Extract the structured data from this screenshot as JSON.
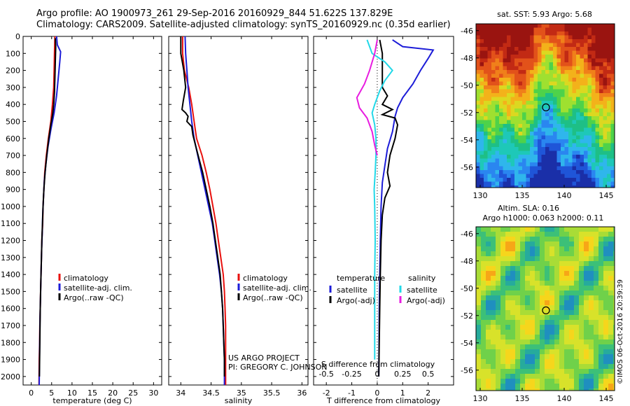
{
  "header": {
    "title_line1": "Argo profile: AO 1900973_261 29-Sep-2016 20160929_844 51.622S 137.829E",
    "title_line2": "Climatology: CARS2009. Satellite-adjusted climatology: synTS_20160929.nc (0.35d earlier)"
  },
  "colors": {
    "climatology": "#e8110e",
    "satellite": "#1c1cd8",
    "argo": "#000000",
    "salinity_satellite": "#22d8e8",
    "salinity_argo": "#e81ce0"
  },
  "credits": {
    "project": "US ARGO PROJECT",
    "pi": "PI: GREGORY C. JOHNSON",
    "watermark": "©IMOS 06-Oct-2016 20:39:39"
  },
  "chart_data": [
    {
      "type": "line",
      "name": "temperature-profile",
      "xlabel": "temperature (deg C)",
      "ylabel": "",
      "xlim": [
        -2,
        32
      ],
      "ylim": [
        2050,
        0
      ],
      "xticks": [
        0,
        5,
        10,
        15,
        20,
        25,
        30
      ],
      "yticks": [
        0,
        100,
        200,
        300,
        400,
        500,
        600,
        700,
        800,
        900,
        1000,
        1100,
        1200,
        1300,
        1400,
        1500,
        1600,
        1700,
        1800,
        1900,
        2000
      ],
      "legend": [
        "climatology",
        "satellite-adj. clim.",
        "Argo(..raw -QC)"
      ],
      "legend_placement": "lower-center",
      "series": [
        {
          "name": "climatology",
          "color": "#e8110e",
          "points": [
            [
              5.8,
              0
            ],
            [
              5.7,
              100
            ],
            [
              5.6,
              200
            ],
            [
              5.5,
              300
            ],
            [
              5.2,
              400
            ],
            [
              4.8,
              500
            ],
            [
              4.2,
              600
            ],
            [
              3.7,
              700
            ],
            [
              3.3,
              800
            ],
            [
              3.1,
              900
            ],
            [
              2.9,
              1000
            ],
            [
              2.8,
              1100
            ],
            [
              2.6,
              1200
            ],
            [
              2.5,
              1300
            ],
            [
              2.4,
              1400
            ],
            [
              2.3,
              1500
            ],
            [
              2.2,
              1600
            ],
            [
              2.1,
              1700
            ],
            [
              2.05,
              1800
            ],
            [
              1.95,
              1900
            ],
            [
              1.9,
              2050
            ]
          ]
        },
        {
          "name": "satellite-adj. clim.",
          "color": "#1c1cd8",
          "points": [
            [
              6.2,
              0
            ],
            [
              6.4,
              50
            ],
            [
              7.2,
              90
            ],
            [
              7.0,
              150
            ],
            [
              6.6,
              250
            ],
            [
              6.2,
              350
            ],
            [
              5.6,
              450
            ],
            [
              4.8,
              550
            ],
            [
              4.1,
              650
            ],
            [
              3.6,
              750
            ],
            [
              3.2,
              850
            ],
            [
              3.0,
              950
            ],
            [
              2.8,
              1050
            ],
            [
              2.7,
              1150
            ],
            [
              2.55,
              1250
            ],
            [
              2.45,
              1350
            ],
            [
              2.35,
              1450
            ],
            [
              2.25,
              1550
            ],
            [
              2.15,
              1650
            ],
            [
              2.1,
              1750
            ],
            [
              2.05,
              1850
            ],
            [
              2.0,
              1950
            ],
            [
              1.95,
              2050
            ]
          ]
        },
        {
          "name": "Argo(..raw -QC)",
          "color": "#000000",
          "points": [
            [
              5.9,
              10
            ],
            [
              6.0,
              60
            ],
            [
              5.9,
              150
            ],
            [
              5.8,
              250
            ],
            [
              5.7,
              330
            ],
            [
              5.5,
              400
            ],
            [
              5.3,
              450
            ],
            [
              4.8,
              520
            ],
            [
              4.3,
              600
            ],
            [
              3.8,
              700
            ],
            [
              3.4,
              800
            ],
            [
              3.1,
              900
            ],
            [
              2.9,
              1000
            ],
            [
              2.75,
              1100
            ],
            [
              2.6,
              1200
            ],
            [
              2.5,
              1300
            ],
            [
              2.4,
              1400
            ],
            [
              2.3,
              1500
            ],
            [
              2.2,
              1600
            ],
            [
              2.15,
              1700
            ],
            [
              2.1,
              1800
            ],
            [
              2.05,
              1900
            ],
            [
              2.0,
              2000
            ]
          ]
        }
      ]
    },
    {
      "type": "line",
      "name": "salinity-profile",
      "xlabel": "salinity",
      "ylabel": "",
      "xlim": [
        33.8,
        36.1
      ],
      "ylim": [
        2050,
        0
      ],
      "xticks": [
        34,
        34.5,
        35,
        35.5,
        36
      ],
      "legend": [
        "climatology",
        "satellite-adj. clim.",
        "Argo(..raw -QC)"
      ],
      "legend_placement": "lower-right",
      "series": [
        {
          "name": "climatology",
          "color": "#e8110e",
          "points": [
            [
              34.03,
              0
            ],
            [
              34.03,
              100
            ],
            [
              34.06,
              200
            ],
            [
              34.13,
              300
            ],
            [
              34.18,
              400
            ],
            [
              34.22,
              500
            ],
            [
              34.26,
              600
            ],
            [
              34.35,
              700
            ],
            [
              34.42,
              800
            ],
            [
              34.48,
              900
            ],
            [
              34.53,
              1000
            ],
            [
              34.58,
              1100
            ],
            [
              34.62,
              1200
            ],
            [
              34.66,
              1300
            ],
            [
              34.7,
              1400
            ],
            [
              34.72,
              1500
            ],
            [
              34.73,
              1600
            ],
            [
              34.74,
              1700
            ],
            [
              34.74,
              1800
            ],
            [
              34.74,
              1900
            ],
            [
              34.74,
              2050
            ]
          ]
        },
        {
          "name": "satellite-adj. clim.",
          "color": "#1c1cd8",
          "points": [
            [
              34.07,
              0
            ],
            [
              34.08,
              100
            ],
            [
              34.1,
              200
            ],
            [
              34.12,
              300
            ],
            [
              34.15,
              400
            ],
            [
              34.18,
              500
            ],
            [
              34.22,
              600
            ],
            [
              34.28,
              700
            ],
            [
              34.34,
              800
            ],
            [
              34.4,
              900
            ],
            [
              34.46,
              1000
            ],
            [
              34.52,
              1100
            ],
            [
              34.56,
              1200
            ],
            [
              34.6,
              1300
            ],
            [
              34.64,
              1400
            ],
            [
              34.67,
              1500
            ],
            [
              34.69,
              1600
            ],
            [
              34.7,
              1700
            ],
            [
              34.71,
              1800
            ],
            [
              34.72,
              1900
            ],
            [
              34.72,
              2050
            ]
          ]
        },
        {
          "name": "Argo(..raw -QC)",
          "color": "#000000",
          "points": [
            [
              34.0,
              0
            ],
            [
              34.0,
              100
            ],
            [
              34.05,
              200
            ],
            [
              34.08,
              300
            ],
            [
              34.04,
              380
            ],
            [
              34.02,
              430
            ],
            [
              34.08,
              450
            ],
            [
              34.12,
              470
            ],
            [
              34.1,
              500
            ],
            [
              34.18,
              530
            ],
            [
              34.2,
              580
            ],
            [
              34.25,
              650
            ],
            [
              34.3,
              720
            ],
            [
              34.36,
              800
            ],
            [
              34.42,
              900
            ],
            [
              34.48,
              1000
            ],
            [
              34.53,
              1100
            ],
            [
              34.57,
              1200
            ],
            [
              34.61,
              1300
            ],
            [
              34.65,
              1400
            ],
            [
              34.67,
              1500
            ],
            [
              34.69,
              1600
            ],
            [
              34.7,
              1700
            ],
            [
              34.71,
              1800
            ],
            [
              34.72,
              1900
            ],
            [
              34.72,
              2000
            ]
          ]
        }
      ]
    },
    {
      "type": "line",
      "name": "difference-profile",
      "xlabel": "T difference from climatology",
      "x2label": "S difference from climatology",
      "xlim": [
        -2.5,
        3.0
      ],
      "ylim": [
        2050,
        0
      ],
      "xticks": [
        -2,
        -1,
        0,
        1,
        2
      ],
      "x2ticks": [
        "-0.5",
        "-0.25",
        "0",
        "0.25",
        "0.5"
      ],
      "x2tick_positions": [
        -2,
        -1,
        0,
        1,
        2
      ],
      "legend_groups": [
        {
          "title": "temperature",
          "items": [
            "satellite",
            "Argo(-adj)"
          ]
        },
        {
          "title": "salinity",
          "items": [
            "satellite",
            "Argo(-adj)"
          ]
        }
      ],
      "series": [
        {
          "name": "temperature satellite",
          "color": "#1c1cd8",
          "points": [
            [
              0.6,
              20
            ],
            [
              1.0,
              60
            ],
            [
              2.2,
              80
            ],
            [
              2.0,
              130
            ],
            [
              1.7,
              200
            ],
            [
              1.4,
              280
            ],
            [
              1.0,
              360
            ],
            [
              0.8,
              420
            ],
            [
              0.7,
              470
            ],
            [
              0.6,
              560
            ],
            [
              0.4,
              660
            ],
            [
              0.3,
              760
            ],
            [
              0.2,
              860
            ],
            [
              0.15,
              1000
            ],
            [
              0.12,
              1200
            ],
            [
              0.1,
              1400
            ],
            [
              0.08,
              1600
            ],
            [
              0.07,
              1800
            ],
            [
              0.06,
              2000
            ]
          ]
        },
        {
          "name": "temperature Argo(-adj)",
          "color": "#000000",
          "points": [
            [
              0.1,
              20
            ],
            [
              0.2,
              100
            ],
            [
              0.2,
              200
            ],
            [
              0.2,
              300
            ],
            [
              0.4,
              350
            ],
            [
              0.2,
              400
            ],
            [
              0.6,
              430
            ],
            [
              0.2,
              460
            ],
            [
              0.7,
              480
            ],
            [
              0.8,
              520
            ],
            [
              0.7,
              600
            ],
            [
              0.5,
              700
            ],
            [
              0.4,
              800
            ],
            [
              0.5,
              880
            ],
            [
              0.3,
              950
            ],
            [
              0.2,
              1050
            ],
            [
              0.15,
              1200
            ],
            [
              0.12,
              1400
            ],
            [
              0.1,
              1600
            ],
            [
              0.08,
              1800
            ],
            [
              0.06,
              2000
            ]
          ]
        },
        {
          "name": "salinity satellite",
          "color": "#22d8e8",
          "points": [
            [
              -0.4,
              20
            ],
            [
              -0.2,
              100
            ],
            [
              0.3,
              150
            ],
            [
              0.6,
              200
            ],
            [
              0.3,
              260
            ],
            [
              0.1,
              320
            ],
            [
              -0.1,
              400
            ],
            [
              -0.2,
              450
            ],
            [
              -0.1,
              520
            ],
            [
              -0.05,
              600
            ],
            [
              -0.05,
              700
            ],
            [
              -0.08,
              800
            ],
            [
              -0.12,
              900
            ],
            [
              -0.1,
              1000
            ],
            [
              -0.08,
              1200
            ],
            [
              -0.1,
              1400
            ],
            [
              -0.1,
              1600
            ],
            [
              -0.1,
              1800
            ],
            [
              -0.1,
              1900
            ]
          ]
        },
        {
          "name": "salinity Argo(-adj)",
          "color": "#e81ce0",
          "points": [
            [
              0.0,
              20
            ],
            [
              -0.1,
              100
            ],
            [
              -0.3,
              200
            ],
            [
              -0.5,
              280
            ],
            [
              -0.8,
              360
            ],
            [
              -0.7,
              420
            ],
            [
              -0.4,
              480
            ],
            [
              -0.2,
              560
            ],
            [
              -0.1,
              640
            ],
            [
              0.0,
              700
            ]
          ]
        }
      ]
    },
    {
      "type": "heatmap",
      "name": "sst-map",
      "title": "sat. SST: 5.93 Argo: 5.68",
      "xlim": [
        129.5,
        146
      ],
      "ylim": [
        -57.5,
        -45.5
      ],
      "xticks": [
        130,
        135,
        140,
        145
      ],
      "yticks": [
        -46,
        -48,
        -50,
        -52,
        -54,
        -56
      ],
      "marker": {
        "lon": 137.829,
        "lat": -51.622
      }
    },
    {
      "type": "heatmap",
      "name": "sla-map",
      "title_line1": "Altim. SLA: 0.16",
      "title_line2": "Argo h1000: 0.063 h2000: 0.11",
      "xlim": [
        129.5,
        146
      ],
      "ylim": [
        -57.5,
        -45.5
      ],
      "xticks": [
        130,
        135,
        140,
        145
      ],
      "yticks": [
        -46,
        -48,
        -50,
        -52,
        -54,
        -56
      ],
      "marker": {
        "lon": 137.829,
        "lat": -51.622
      }
    }
  ]
}
